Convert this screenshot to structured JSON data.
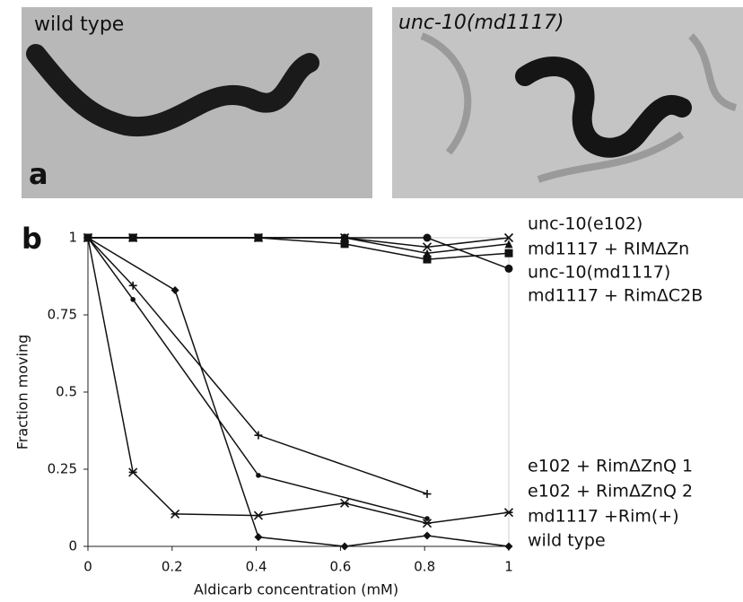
{
  "figure": {
    "photos": [
      {
        "label": "wild type"
      },
      {
        "label": "unc-10(md1117)"
      }
    ],
    "panel_labels": [
      "a",
      "b"
    ]
  },
  "chart_data": {
    "type": "line",
    "xlabel": "Aldicarb concentration (mM)",
    "ylabel": "Fraction moving",
    "xlim": [
      0,
      1
    ],
    "ylim": [
      0,
      1
    ],
    "xticks": [
      0,
      0.2,
      0.4,
      0.6,
      0.8,
      1
    ],
    "yticks": [
      0,
      0.25,
      0.5,
      0.75,
      1
    ],
    "series": [
      {
        "name": "unc-10(e102)",
        "color": "#111111",
        "marker": "x",
        "x": [
          0,
          0.107,
          0.405,
          0.61,
          0.806,
          1
        ],
        "values": [
          1,
          1,
          1,
          1,
          0.97,
          1
        ]
      },
      {
        "name": "md1117 + RIMΔZn",
        "color": "#111111",
        "marker": "square",
        "x": [
          0,
          0.107,
          0.405,
          0.61,
          0.806,
          1
        ],
        "values": [
          1,
          1,
          1,
          0.98,
          0.93,
          0.95
        ]
      },
      {
        "name": "unc-10(md1117)",
        "color": "#111111",
        "marker": "circle",
        "x": [
          0,
          0.107,
          0.405,
          0.61,
          0.806,
          1
        ],
        "values": [
          1,
          1,
          1,
          1,
          1,
          0.9
        ]
      },
      {
        "name": "md1117 + RimΔC2B",
        "color": "#111111",
        "marker": "triangle",
        "x": [
          0,
          0.107,
          0.405,
          0.61,
          0.806,
          1
        ],
        "values": [
          1,
          1,
          1,
          1,
          0.95,
          0.98
        ]
      },
      {
        "name": "e102 + RimΔZnQ  1",
        "color": "#111111",
        "marker": "plus",
        "x": [
          0,
          0.107,
          0.405,
          0.806
        ],
        "values": [
          1,
          0.845,
          0.36,
          0.17
        ]
      },
      {
        "name": "e102 + RimΔZnQ  2",
        "color": "#111111",
        "marker": "dot",
        "x": [
          0,
          0.107,
          0.405,
          0.806
        ],
        "values": [
          1,
          0.8,
          0.23,
          0.09
        ]
      },
      {
        "name": "md1117 +Rim(+)",
        "color": "#111111",
        "marker": "asterisk",
        "x": [
          0,
          0.107,
          0.207,
          0.405,
          0.61,
          0.806,
          1
        ],
        "values": [
          1,
          0.24,
          0.105,
          0.1,
          0.14,
          0.075,
          0.11
        ]
      },
      {
        "name": "wild type",
        "color": "#111111",
        "marker": "diamond",
        "x": [
          0,
          0.207,
          0.405,
          0.61,
          0.806,
          1
        ],
        "values": [
          1,
          0.83,
          0.03,
          0,
          0.035,
          0
        ]
      }
    ]
  }
}
